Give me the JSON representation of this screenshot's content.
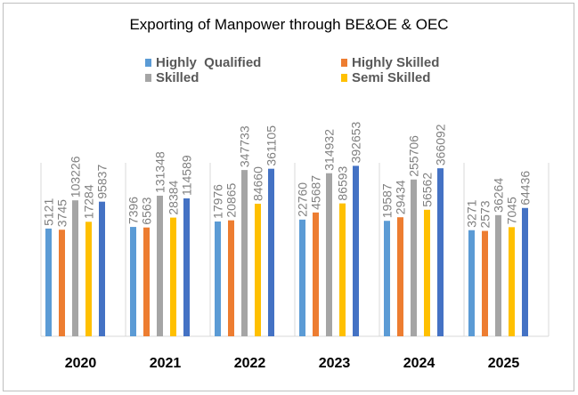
{
  "chart_data": {
    "type": "bar",
    "title": "Exporting of Manpower through BE&OE & OEC",
    "categories": [
      "2020",
      "2021",
      "2022",
      "2023",
      "2024",
      "2025"
    ],
    "series": [
      {
        "name": "Highly  Qualified",
        "color": "#5b9bd5",
        "values": [
          5121,
          7396,
          17976,
          22760,
          19587,
          3271
        ]
      },
      {
        "name": "Highly Skilled",
        "color": "#ed7d31",
        "values": [
          3745,
          6563,
          20865,
          45687,
          29434,
          2573
        ]
      },
      {
        "name": "Skilled",
        "color": "#a5a5a5",
        "values": [
          103226,
          131348,
          347733,
          314932,
          255706,
          36264
        ]
      },
      {
        "name": "Semi Skilled",
        "color": "#ffc000",
        "values": [
          17284,
          28384,
          84660,
          86593,
          56562,
          7045
        ]
      },
      {
        "name": "",
        "color": "#4472c4",
        "values": [
          95837,
          114589,
          361105,
          392653,
          366092,
          64436
        ]
      }
    ],
    "xlabel": "",
    "ylabel": "",
    "legend": "top",
    "grid": false,
    "data_labels": true
  }
}
